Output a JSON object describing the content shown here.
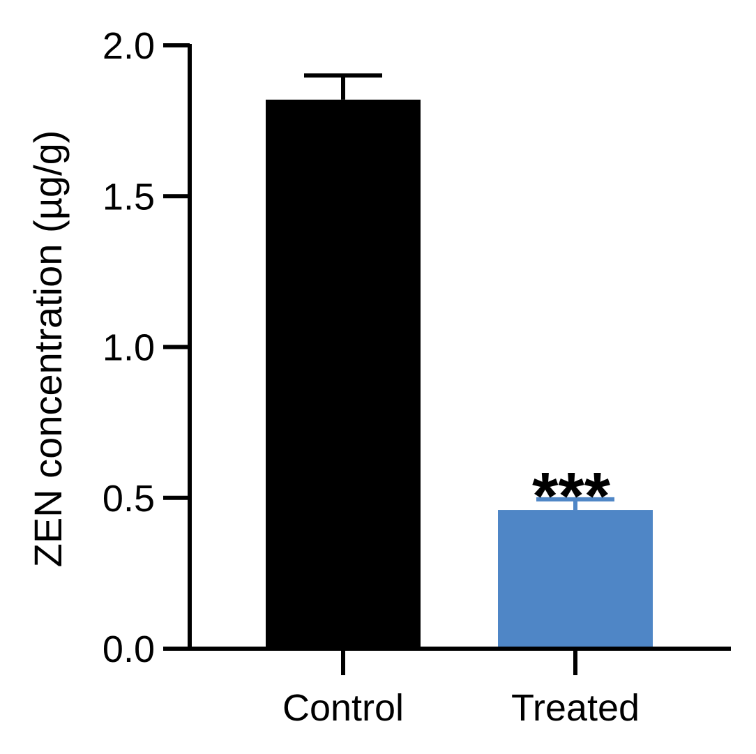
{
  "chart_data": {
    "type": "bar",
    "title": "",
    "xlabel": "",
    "ylabel": "ZEN concentration (µg/g)",
    "ylim": [
      0,
      2.0
    ],
    "yticks": [
      0.0,
      0.5,
      1.0,
      1.5,
      2.0
    ],
    "ytick_labels": [
      "0.0",
      "0.5",
      "1.0",
      "1.5",
      "2.0"
    ],
    "categories": [
      "Control",
      "Treated"
    ],
    "values": [
      1.82,
      0.46
    ],
    "errors": [
      0.08,
      0.035
    ],
    "colors": [
      "#000000",
      "#4f86c6"
    ],
    "annotations": [
      {
        "category": "Treated",
        "text": "***"
      }
    ]
  }
}
